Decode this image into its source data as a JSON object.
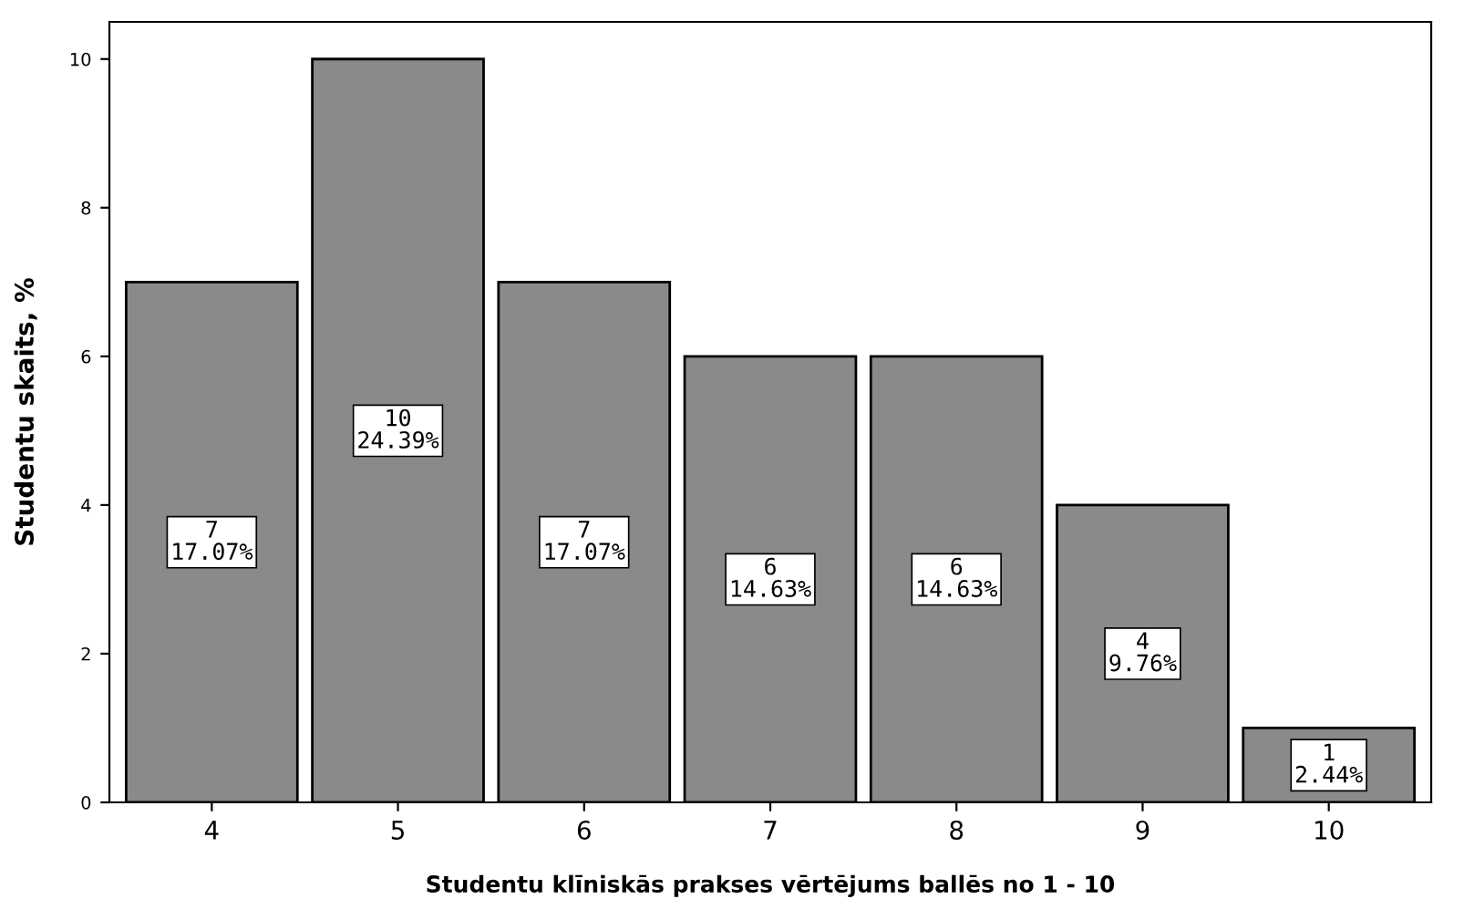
{
  "chart_data": {
    "type": "bar",
    "xlabel": "Studentu klīniskās prakses vērtējums ballēs no 1 - 10",
    "ylabel": "Studentu skaits, %",
    "categories": [
      "4",
      "5",
      "6",
      "7",
      "8",
      "9",
      "10"
    ],
    "values": [
      7,
      10,
      7,
      6,
      6,
      4,
      1
    ],
    "value_labels": [
      "7\n17.07%",
      "10\n24.39%",
      "7\n17.07%",
      "6\n14.63%",
      "6\n14.63%",
      "4\n9.76%",
      "1\n2.44%"
    ],
    "color": "#8a8a8a",
    "ylim": [
      0,
      10.5
    ],
    "yticks": [
      0,
      2,
      4,
      6,
      8,
      10
    ],
    "grid": false,
    "legend": false
  }
}
